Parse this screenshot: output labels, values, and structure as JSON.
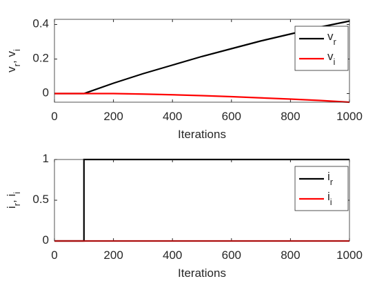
{
  "chart_data": [
    {
      "type": "line",
      "xlabel": "Iterations",
      "ylabel": "v_r, v_i",
      "x": [
        0,
        100,
        200,
        300,
        400,
        500,
        600,
        700,
        800,
        900,
        1000
      ],
      "series": [
        {
          "name": "v_r",
          "color": "#000000",
          "values": [
            0,
            0,
            0.06,
            0.115,
            0.165,
            0.215,
            0.26,
            0.305,
            0.345,
            0.385,
            0.42
          ]
        },
        {
          "name": "v_i",
          "color": "#ff0000",
          "values": [
            0,
            0,
            0,
            -0.003,
            -0.007,
            -0.012,
            -0.018,
            -0.025,
            -0.032,
            -0.04,
            -0.05
          ]
        }
      ],
      "xlim": [
        0,
        1000
      ],
      "ylim": [
        -0.05,
        0.43
      ],
      "xticks": [
        0,
        200,
        400,
        600,
        800,
        1000
      ],
      "yticks": [
        0,
        0.2,
        0.4
      ],
      "legend": "northeast"
    },
    {
      "type": "line",
      "xlabel": "Iterations",
      "ylabel": "i_r, i_i",
      "x": [
        0,
        100,
        100,
        1000
      ],
      "series": [
        {
          "name": "i_r",
          "color": "#000000",
          "values": [
            0,
            0,
            1,
            1
          ]
        },
        {
          "name": "i_i",
          "color": "#ff0000",
          "values": [
            0,
            0,
            0,
            0
          ]
        }
      ],
      "xlim": [
        0,
        1000
      ],
      "ylim": [
        0,
        1
      ],
      "xticks": [
        0,
        200,
        400,
        600,
        800,
        1000
      ],
      "yticks": [
        0,
        0.5,
        1
      ],
      "legend": "northeast"
    }
  ]
}
